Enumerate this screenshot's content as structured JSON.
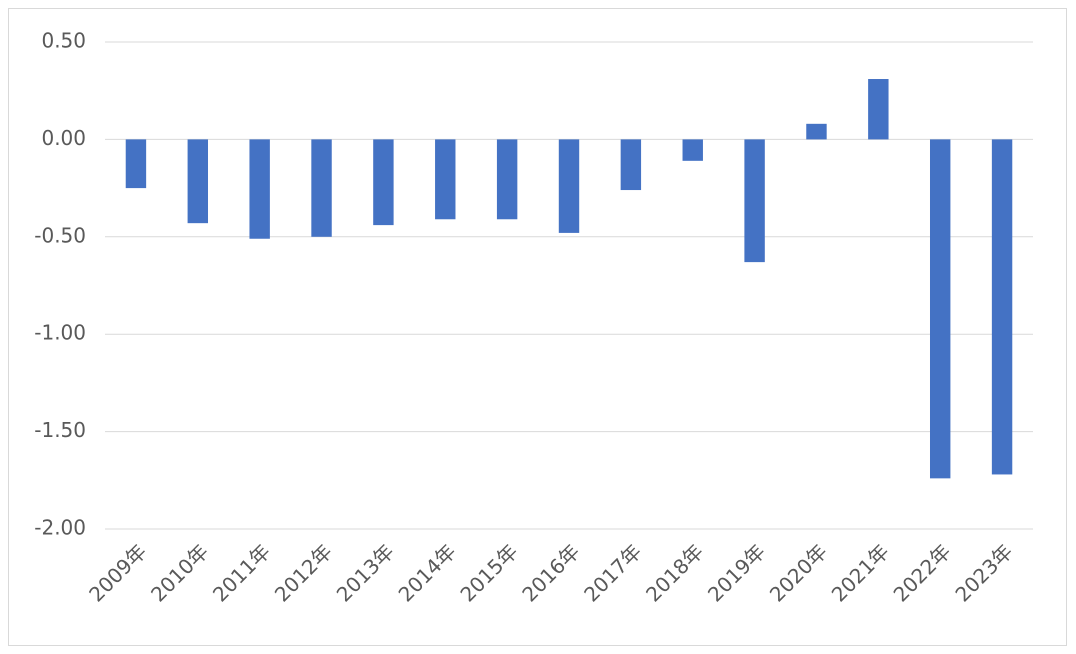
{
  "chart_data": {
    "type": "bar",
    "categories": [
      "2009年",
      "2010年",
      "2011年",
      "2012年",
      "2013年",
      "2014年",
      "2015年",
      "2016年",
      "2017年",
      "2018年",
      "2019年",
      "2020年",
      "2021年",
      "2022年",
      "2023年"
    ],
    "values": [
      -0.25,
      -0.43,
      -0.51,
      -0.5,
      -0.44,
      -0.41,
      -0.41,
      -0.48,
      -0.26,
      -0.11,
      -0.63,
      0.08,
      0.31,
      -1.74,
      -1.72
    ],
    "color": "#4472c4",
    "ylim": [
      -2,
      0.5
    ],
    "yticks": [
      {
        "value": 0.5,
        "label": "0.50"
      },
      {
        "value": 0,
        "label": "0.00"
      },
      {
        "value": -0.5,
        "label": "-0.50"
      },
      {
        "value": -1,
        "label": "-1.00"
      },
      {
        "value": -1.5,
        "label": "-1.50"
      },
      {
        "value": -2,
        "label": "-2.00"
      }
    ],
    "grid": true
  }
}
